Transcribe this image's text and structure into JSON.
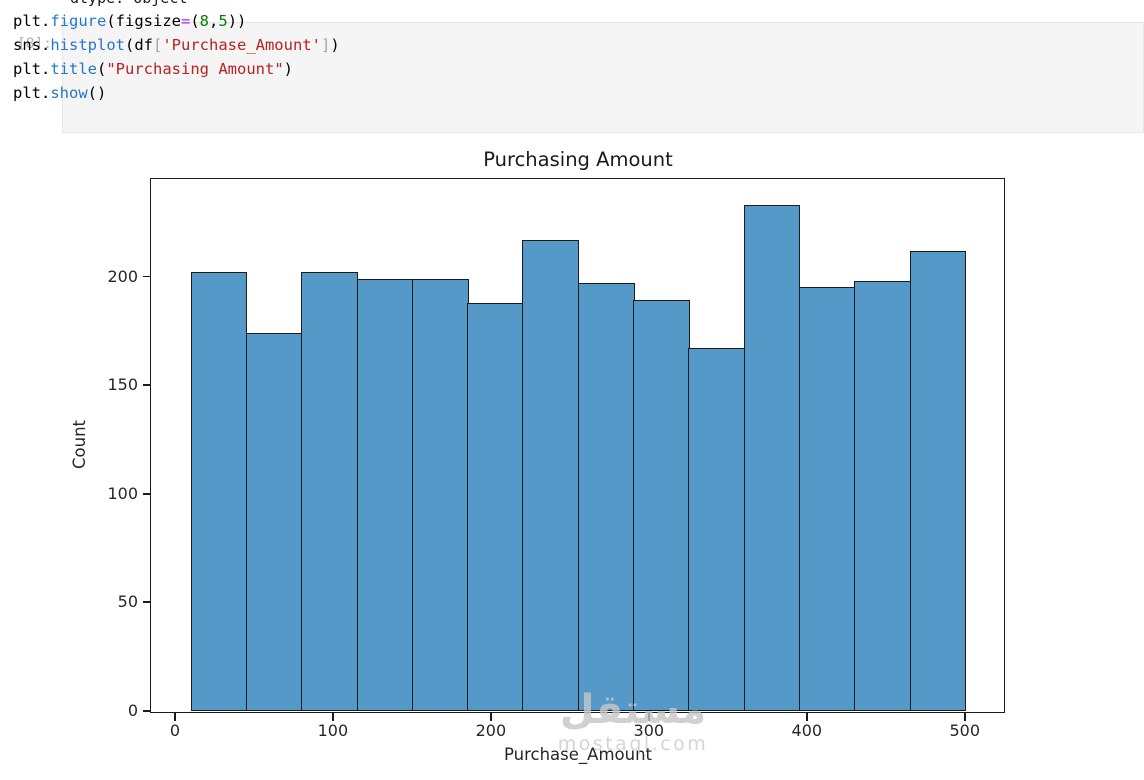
{
  "page": {
    "clipped_top_text": "dtype: object"
  },
  "cell": {
    "prompt": "[8]:",
    "syntax_colors": {
      "plain": "#000000",
      "function": "#2577c9",
      "operator": "#aa22ff",
      "number": "#008000",
      "string": "#ba2121",
      "bracket": "#a3a3a3"
    },
    "code_lines": [
      [
        {
          "t": "plt.",
          "c": "p"
        },
        {
          "t": "figure",
          "c": "f"
        },
        {
          "t": "(figsize",
          "c": "p"
        },
        {
          "t": "=",
          "c": "o"
        },
        {
          "t": "(",
          "c": "p"
        },
        {
          "t": "8",
          "c": "n"
        },
        {
          "t": ",",
          "c": "p"
        },
        {
          "t": "5",
          "c": "n"
        },
        {
          "t": "))",
          "c": "p"
        }
      ],
      [
        {
          "t": "sns.",
          "c": "p"
        },
        {
          "t": "histplot",
          "c": "f"
        },
        {
          "t": "(df",
          "c": "p"
        },
        {
          "t": "[",
          "c": "b"
        },
        {
          "t": "'Purchase_Amount'",
          "c": "s"
        },
        {
          "t": "]",
          "c": "b"
        },
        {
          "t": ")",
          "c": "p"
        }
      ],
      [
        {
          "t": "plt.",
          "c": "p"
        },
        {
          "t": "title",
          "c": "f"
        },
        {
          "t": "(",
          "c": "p"
        },
        {
          "t": "\"Purchasing Amount\"",
          "c": "s"
        },
        {
          "t": ")",
          "c": "p"
        }
      ],
      [
        {
          "t": "plt.",
          "c": "p"
        },
        {
          "t": "show",
          "c": "f"
        },
        {
          "t": "()",
          "c": "p"
        }
      ]
    ]
  },
  "chart_data": {
    "type": "bar",
    "subtype": "histogram",
    "title": "Purchasing Amount",
    "xlabel": "Purchase_Amount",
    "ylabel": "Count",
    "bin_edges": [
      10,
      45,
      80,
      115,
      150,
      185,
      220,
      255,
      290,
      325,
      360,
      395,
      430,
      465,
      500
    ],
    "counts": [
      202,
      174,
      202,
      199,
      199,
      188,
      217,
      197,
      189,
      167,
      233,
      195,
      198,
      212
    ],
    "xticks": [
      0,
      100,
      200,
      300,
      400,
      500
    ],
    "yticks": [
      0,
      50,
      100,
      150,
      200
    ],
    "xlim": [
      -14.5,
      524.5
    ],
    "ylim": [
      0,
      244.7
    ],
    "grid": false,
    "legend": "none",
    "bar_color": "#5499c7",
    "bar_edge_color": "#1c1c1c"
  },
  "watermark": {
    "arabic": "مستقل",
    "domain": "mostaql.com"
  }
}
